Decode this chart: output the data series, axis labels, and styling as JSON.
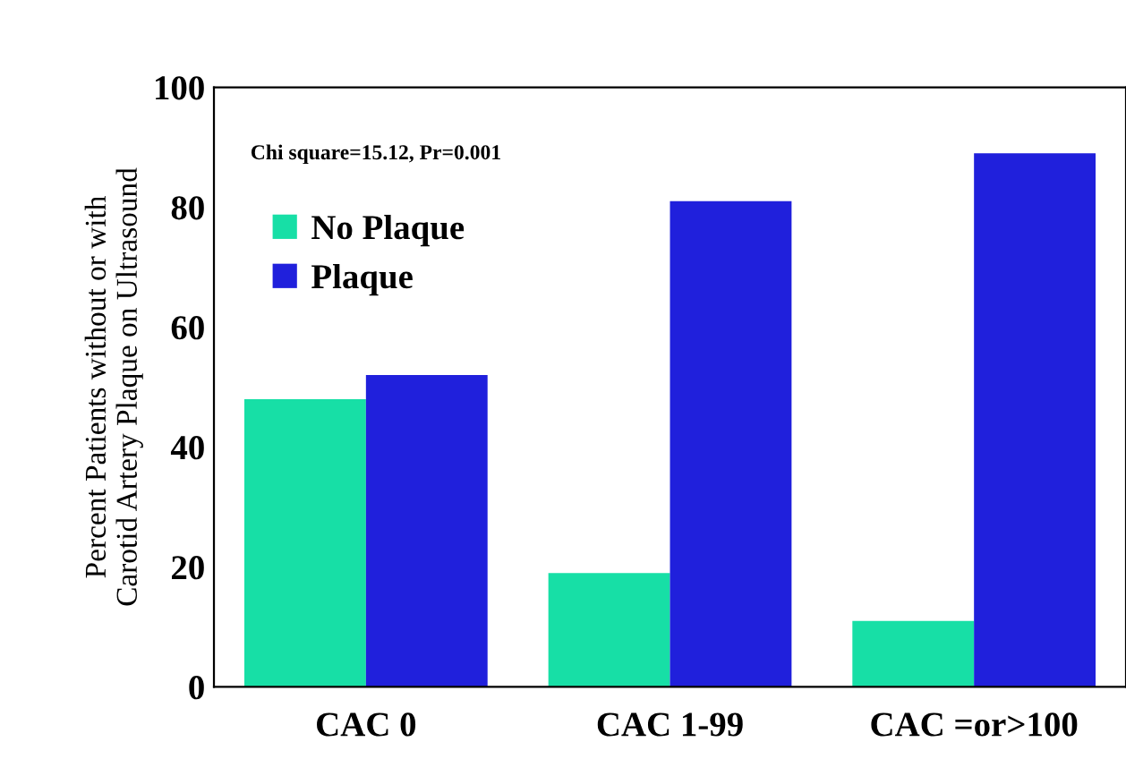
{
  "chart_data": {
    "type": "bar",
    "ylabel": "Percent Patients without or with\nCarotid Artery Plaque on Ultrasound",
    "categories": [
      "CAC 0",
      "CAC 1-99",
      "CAC =or>100"
    ],
    "series": [
      {
        "name": "No Plaque",
        "color": "#17dfa6",
        "values": [
          48,
          19,
          11
        ]
      },
      {
        "name": "Plaque",
        "color": "#2020dc",
        "values": [
          52,
          81,
          89
        ]
      }
    ],
    "ylim": [
      0,
      100
    ],
    "yticks": [
      0,
      20,
      40,
      60,
      80,
      100
    ],
    "grid": false,
    "legend": "top left",
    "annotations": [
      "Chi square=15.12, Pr=0.001"
    ]
  }
}
